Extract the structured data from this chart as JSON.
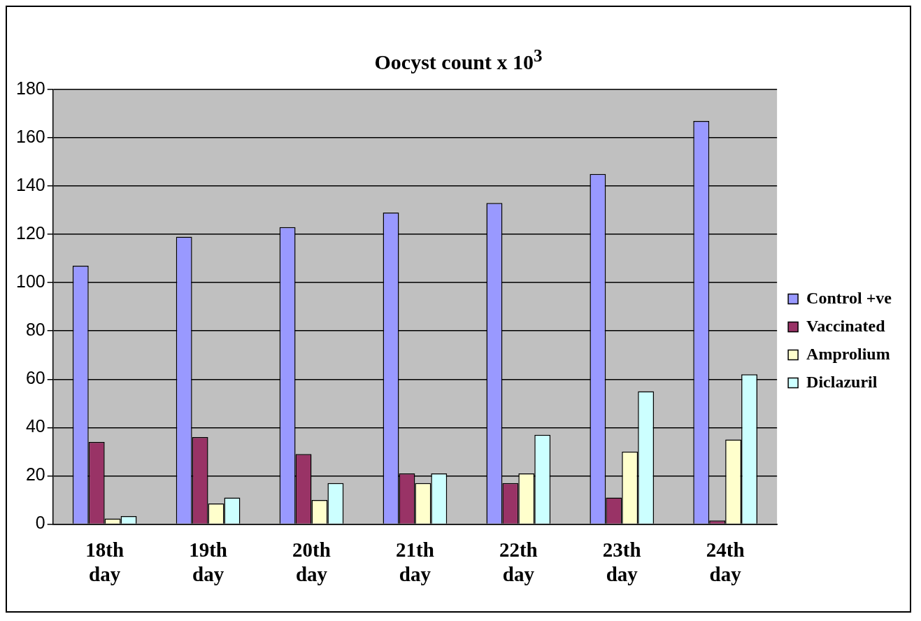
{
  "chart_data": {
    "type": "bar",
    "title": "Oocyst count x 10$^{3}$",
    "categories": [
      "18th day",
      "19th day",
      "20th day",
      "21th day",
      "22th day",
      "23th day",
      "24th day"
    ],
    "series": [
      {
        "name": "Control +ve",
        "color": "#9999ff",
        "values": [
          107,
          119,
          123,
          129,
          133,
          145,
          167
        ]
      },
      {
        "name": "Vaccinated",
        "color": "#993366",
        "values": [
          34,
          36,
          29,
          21,
          17,
          11,
          1.5
        ]
      },
      {
        "name": "Amprolium",
        "color": "#ffffcc",
        "values": [
          2.3,
          8.5,
          10,
          17,
          21,
          30,
          35
        ]
      },
      {
        "name": "Diclazuril",
        "color": "#ccffff",
        "values": [
          3.3,
          11,
          17,
          21,
          37,
          55,
          62
        ]
      }
    ],
    "ylim": [
      0,
      180
    ],
    "yticks": [
      0,
      20,
      40,
      60,
      80,
      100,
      120,
      140,
      160,
      180
    ],
    "grid": "y",
    "legend": "right"
  }
}
